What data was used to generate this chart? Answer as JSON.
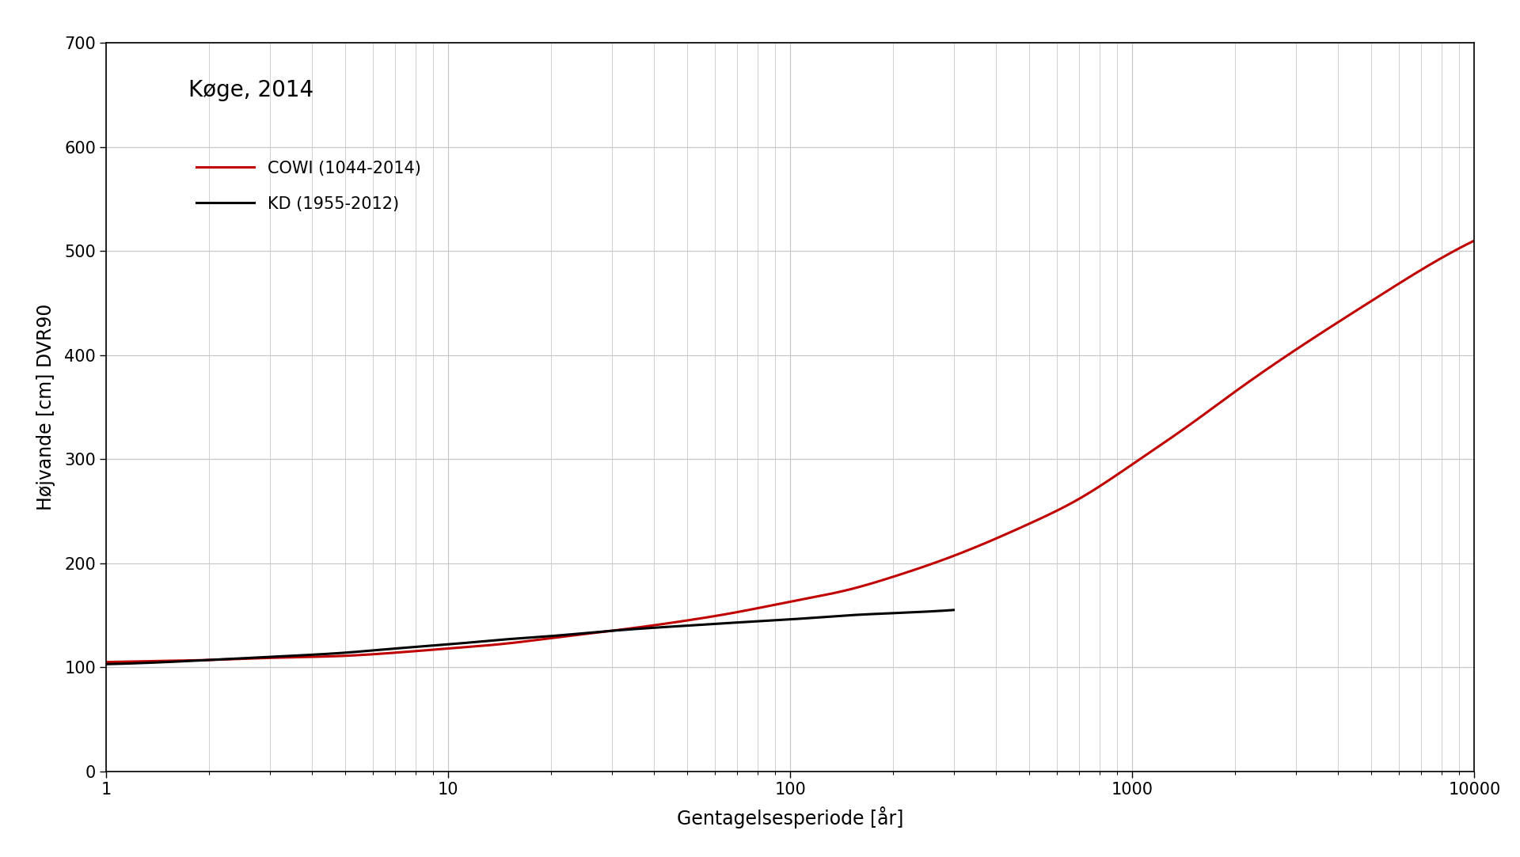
{
  "title": "Køge, 2014",
  "xlabel": "Gentagelsesperiode [år]",
  "ylabel": "Højvande [cm] DVR90",
  "xlim": [
    1,
    10000
  ],
  "ylim": [
    0,
    700
  ],
  "yticks": [
    0,
    100,
    200,
    300,
    400,
    500,
    600,
    700
  ],
  "xticks": [
    1,
    10,
    100,
    1000,
    10000
  ],
  "background_color": "#ffffff",
  "grid_color": "#c8c8c8",
  "cowi_color": "#c00000",
  "kd_color": "#000000",
  "cowi_label": "COWI (1044-2014)",
  "kd_label": "KD (1955-2012)",
  "line_width": 2.2,
  "cowi_x": [
    1,
    1.5,
    2,
    3,
    5,
    7,
    10,
    15,
    20,
    30,
    50,
    70,
    100,
    150,
    200,
    300,
    500,
    700,
    1000,
    1500,
    2000,
    3000,
    5000,
    7000,
    10000
  ],
  "cowi_y": [
    105,
    106,
    107,
    109,
    111,
    114,
    118,
    123,
    128,
    135,
    145,
    153,
    163,
    175,
    187,
    207,
    238,
    262,
    295,
    335,
    365,
    405,
    452,
    482,
    510
  ],
  "kd_x": [
    1,
    1.5,
    2,
    3,
    5,
    7,
    10,
    15,
    20,
    30,
    50,
    70,
    100,
    150,
    200,
    300
  ],
  "kd_y": [
    103,
    105,
    107,
    110,
    114,
    118,
    122,
    127,
    130,
    135,
    140,
    143,
    146,
    150,
    152,
    155
  ]
}
